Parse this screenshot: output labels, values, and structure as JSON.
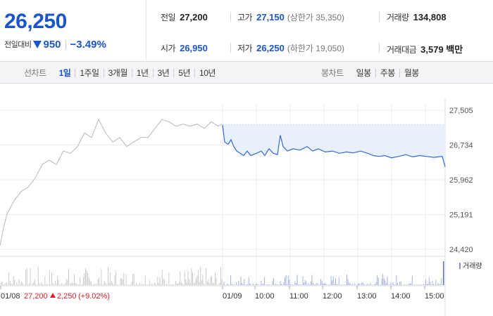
{
  "header": {
    "price": "26,250",
    "change_label": "전일대비",
    "change_value": "950",
    "change_pct": "−3.49%",
    "stats": {
      "prev_close": {
        "label": "전일",
        "value": "27,200"
      },
      "high": {
        "label": "고가",
        "value": "27,150",
        "limit": "(상한가 35,350)"
      },
      "volume": {
        "label": "거래량",
        "value": "134,808"
      },
      "open": {
        "label": "시가",
        "value": "26,950"
      },
      "low": {
        "label": "저가",
        "value": "26,250",
        "limit": "(하한가 19,050)"
      },
      "amount": {
        "label": "거래대금",
        "value": "3,579 백만"
      }
    }
  },
  "tabs": {
    "line_title": "선차트",
    "line_items": [
      "1일",
      "1주일",
      "3개월",
      "1년",
      "3년",
      "5년",
      "10년"
    ],
    "line_active": "1일",
    "candle_title": "봉차트",
    "candle_items": [
      "일봉",
      "주봉",
      "월봉"
    ]
  },
  "colors": {
    "accent": "#1a56c8",
    "prev_line": "#b8b8b8",
    "today_line": "#2f6ad8",
    "fill": "#e8f0fc",
    "up": "#e0202b"
  },
  "chart_data": {
    "type": "line",
    "y_ticks": [
      "27,505",
      "26,734",
      "25,962",
      "25,191",
      "24,420"
    ],
    "y_range": [
      24420,
      27505
    ],
    "x_ticks": [
      "01/08",
      "01/09",
      "10:00",
      "11:00",
      "12:00",
      "13:00",
      "14:00",
      "15:00"
    ],
    "prev_day": {
      "date": "01/08",
      "close": "27,200",
      "change": "2,250",
      "change_pct": "(+9.02%)",
      "points": [
        [
          0,
          24500
        ],
        [
          5,
          24900
        ],
        [
          10,
          25200
        ],
        [
          20,
          25500
        ],
        [
          30,
          25700
        ],
        [
          40,
          25800
        ],
        [
          50,
          26000
        ],
        [
          60,
          26300
        ],
        [
          70,
          26400
        ],
        [
          80,
          26300
        ],
        [
          90,
          26600
        ],
        [
          100,
          26550
        ],
        [
          110,
          26700
        ],
        [
          120,
          27000
        ],
        [
          130,
          26900
        ],
        [
          140,
          27300
        ],
        [
          150,
          27000
        ],
        [
          160,
          26800
        ],
        [
          170,
          26900
        ],
        [
          180,
          26700
        ],
        [
          190,
          26800
        ],
        [
          200,
          26900
        ],
        [
          210,
          26900
        ],
        [
          220,
          27100
        ],
        [
          230,
          27300
        ],
        [
          240,
          27250
        ],
        [
          250,
          27150
        ],
        [
          260,
          27200
        ],
        [
          270,
          27150
        ],
        [
          280,
          27200
        ],
        [
          290,
          27100
        ],
        [
          300,
          27250
        ],
        [
          310,
          27150
        ],
        [
          315,
          27200
        ]
      ]
    },
    "today": {
      "date": "01/09",
      "open": 26950,
      "points": [
        [
          0,
          27180
        ],
        [
          3,
          26800
        ],
        [
          8,
          26750
        ],
        [
          12,
          26850
        ],
        [
          16,
          26700
        ],
        [
          20,
          26600
        ],
        [
          25,
          26550
        ],
        [
          30,
          26500
        ],
        [
          35,
          26600
        ],
        [
          40,
          26500
        ],
        [
          48,
          26550
        ],
        [
          55,
          26600
        ],
        [
          60,
          26500
        ],
        [
          66,
          26650
        ],
        [
          72,
          26550
        ],
        [
          78,
          26520
        ],
        [
          82,
          26950
        ],
        [
          86,
          26700
        ],
        [
          92,
          26600
        ],
        [
          100,
          26650
        ],
        [
          110,
          26620
        ],
        [
          120,
          26700
        ],
        [
          128,
          26600
        ],
        [
          136,
          26650
        ],
        [
          146,
          26580
        ],
        [
          156,
          26600
        ],
        [
          166,
          26550
        ],
        [
          176,
          26580
        ],
        [
          186,
          26560
        ],
        [
          196,
          26600
        ],
        [
          206,
          26550
        ],
        [
          214,
          26500
        ],
        [
          222,
          26480
        ],
        [
          230,
          26500
        ],
        [
          240,
          26450
        ],
        [
          250,
          26480
        ],
        [
          260,
          26520
        ],
        [
          270,
          26470
        ],
        [
          280,
          26500
        ],
        [
          290,
          26480
        ],
        [
          300,
          26460
        ],
        [
          306,
          26470
        ],
        [
          312,
          26480
        ],
        [
          316,
          26250
        ]
      ]
    },
    "volume_legend": "거래량"
  }
}
